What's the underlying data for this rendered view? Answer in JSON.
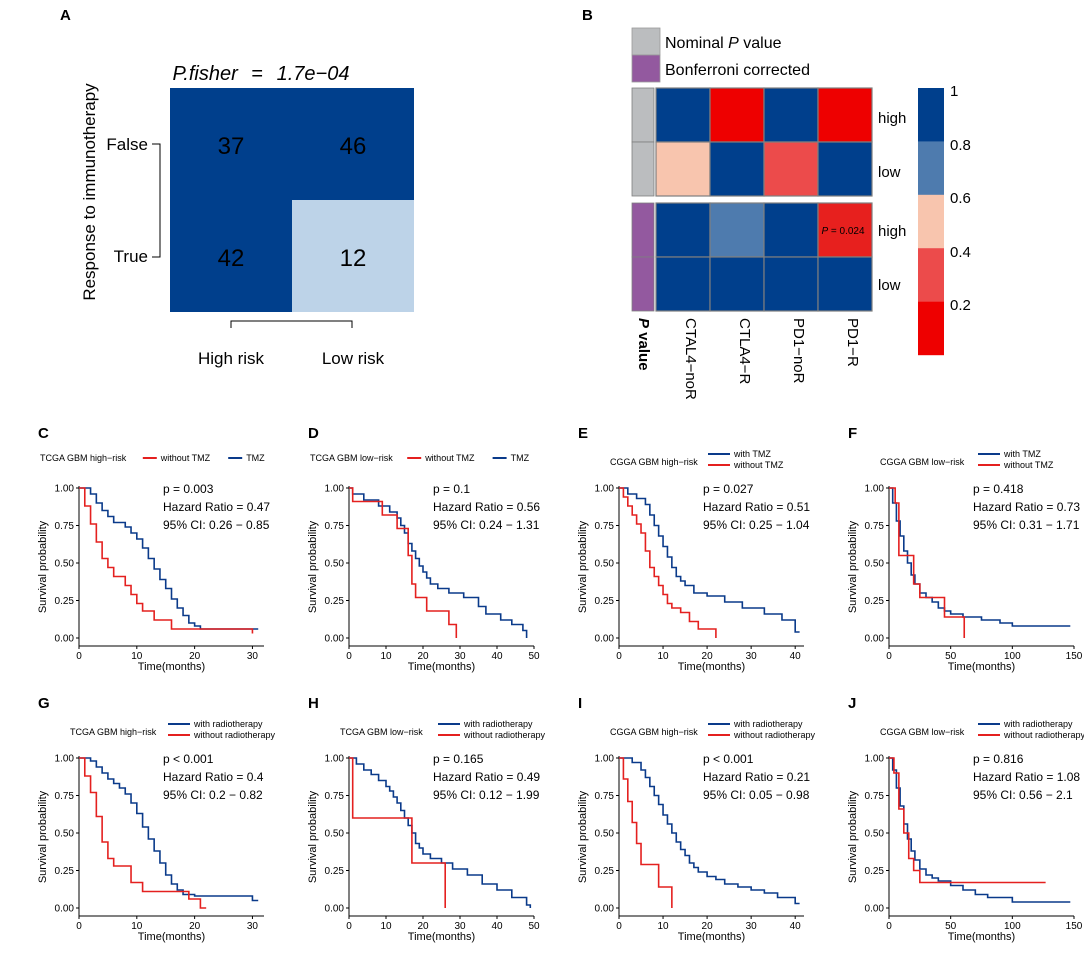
{
  "colors": {
    "dark_blue": "#003F8C",
    "light_blue": "#BDD3E8",
    "grey": "#BBBDBF",
    "purple": "#93599F",
    "red": "#E4201F",
    "km_blue": "#0A3A8A",
    "km_red": "#E4201F"
  },
  "panel_labels": [
    "A",
    "B",
    "C",
    "D",
    "E",
    "F",
    "G",
    "H",
    "I",
    "J"
  ],
  "panelA": {
    "title_prefix": "P.fisher",
    "title_eq": "=",
    "title_value": "1.7e−04",
    "ylabel": "Response to immunotherapy",
    "rows": [
      "False",
      "True"
    ],
    "cols": [
      "High risk",
      "Low risk"
    ],
    "cells": [
      [
        37,
        46
      ],
      [
        42,
        12
      ]
    ],
    "cell_shade": [
      [
        "dark",
        "dark"
      ],
      [
        "dark",
        "light"
      ]
    ]
  },
  "panelB": {
    "legend_items": [
      {
        "label": "Nominal ",
        "italic": "P",
        "suffix": " value",
        "color": "#BBBDBF"
      },
      {
        "label": "Bonferroni corrected",
        "italic": "",
        "suffix": "",
        "color": "#93599F"
      }
    ],
    "row_labels": [
      "high",
      "low",
      "high",
      "low"
    ],
    "row_groups": [
      "grey",
      "grey",
      "purple",
      "purple"
    ],
    "col_labels": [
      "CTAL4−noR",
      "CTLA4−R",
      "PD1−noR",
      "PD1−R"
    ],
    "pvalue_label_italic": "P",
    "pvalue_label_rest": " value",
    "values": [
      [
        1.0,
        0.02,
        1.0,
        0.02
      ],
      [
        0.42,
        1.0,
        0.28,
        1.0
      ],
      [
        1.0,
        0.72,
        1.0,
        0.02
      ],
      [
        1.0,
        1.0,
        1.0,
        1.0
      ]
    ],
    "cell_colors": [
      [
        "#003F8C",
        "#EE0000",
        "#003F8C",
        "#EE0000"
      ],
      [
        "#F8C5AE",
        "#003F8C",
        "#EC4B4B",
        "#003F8C"
      ],
      [
        "#003F8C",
        "#4E7BAE",
        "#003F8C",
        "#E7201E"
      ],
      [
        "#003F8C",
        "#003F8C",
        "#003F8C",
        "#003F8C"
      ]
    ],
    "annotation": {
      "row": 2,
      "col": 3,
      "italic": "P",
      "text": " = 0.024"
    },
    "colorbar_ticks": [
      "1",
      "0.8",
      "0.6",
      "0.4",
      "0.2"
    ],
    "colorbar_colors": [
      "#003F8C",
      "#4E7BAE",
      "#F8C5AE",
      "#EC4B4B",
      "#EE0000"
    ]
  },
  "chart_data": [
    {
      "type": "line",
      "label": "C",
      "title": "TCGA GBM high−risk",
      "legend": [
        {
          "name": "without TMZ",
          "color": "red"
        },
        {
          "name": "TMZ",
          "color": "blue"
        }
      ],
      "legend_layout": "inline",
      "stats": [
        "p = 0.003",
        "Hazard Ratio = 0.47",
        "95% CI: 0.26 − 0.85"
      ],
      "xlabel": "Time(months)",
      "ylabel": "Survival probability",
      "xlim": [
        0,
        32
      ],
      "ylim": [
        0,
        1
      ],
      "xticks": [
        0,
        10,
        20,
        30
      ],
      "yticks": [
        "0.00",
        "0.25",
        "0.50",
        "0.75",
        "1.00"
      ],
      "series": [
        {
          "name": "TMZ",
          "color": "blue",
          "x": [
            0,
            2,
            3,
            4,
            5,
            6,
            8,
            9,
            10,
            11,
            12,
            13,
            14,
            15,
            16,
            17,
            18,
            19,
            20,
            21,
            31
          ],
          "y": [
            1.0,
            0.96,
            0.9,
            0.85,
            0.81,
            0.77,
            0.74,
            0.7,
            0.66,
            0.6,
            0.53,
            0.46,
            0.39,
            0.33,
            0.26,
            0.2,
            0.15,
            0.1,
            0.08,
            0.06,
            0.06
          ]
        },
        {
          "name": "without TMZ",
          "color": "red",
          "x": [
            0,
            1,
            2,
            3,
            4,
            5,
            6,
            8,
            9,
            10,
            11,
            13,
            16,
            30
          ],
          "y": [
            1.0,
            0.88,
            0.76,
            0.64,
            0.53,
            0.47,
            0.41,
            0.35,
            0.29,
            0.23,
            0.18,
            0.12,
            0.06,
            0.03
          ]
        }
      ]
    },
    {
      "type": "line",
      "label": "D",
      "title": "TCGA GBM low−risk",
      "legend": [
        {
          "name": "without TMZ",
          "color": "red"
        },
        {
          "name": "TMZ",
          "color": "blue"
        }
      ],
      "legend_layout": "inline",
      "stats": [
        "p = 0.1",
        "Hazard Ratio = 0.56",
        "95% CI: 0.24 − 1.31"
      ],
      "xlabel": "Time(months)",
      "ylabel": "Survival probability",
      "xlim": [
        0,
        50
      ],
      "ylim": [
        0,
        1
      ],
      "xticks": [
        0,
        10,
        20,
        30,
        40,
        50
      ],
      "yticks": [
        "0.00",
        "0.25",
        "0.50",
        "0.75",
        "1.00"
      ],
      "series": [
        {
          "name": "TMZ",
          "color": "blue",
          "x": [
            0,
            1,
            4,
            8,
            11,
            13,
            14,
            15,
            16,
            17,
            18,
            19,
            20,
            21,
            22,
            24,
            27,
            31,
            35,
            37,
            41,
            44,
            47,
            48
          ],
          "y": [
            1.0,
            0.96,
            0.92,
            0.88,
            0.84,
            0.8,
            0.75,
            0.7,
            0.63,
            0.58,
            0.53,
            0.48,
            0.44,
            0.4,
            0.36,
            0.33,
            0.3,
            0.27,
            0.21,
            0.16,
            0.12,
            0.09,
            0.05,
            0.0
          ]
        },
        {
          "name": "without TMZ",
          "color": "red",
          "x": [
            0,
            1,
            9,
            13,
            16,
            17,
            18,
            21,
            27,
            29
          ],
          "y": [
            1.0,
            0.91,
            0.82,
            0.73,
            0.55,
            0.36,
            0.27,
            0.18,
            0.09,
            0.0
          ]
        }
      ]
    },
    {
      "type": "line",
      "label": "E",
      "title": "CGGA GBM high−risk",
      "legend": [
        {
          "name": "with TMZ",
          "color": "blue"
        },
        {
          "name": "without TMZ",
          "color": "red"
        }
      ],
      "legend_layout": "stacked",
      "stats": [
        "p = 0.027",
        "Hazard Ratio = 0.51",
        "95% CI: 0.25 − 1.04"
      ],
      "xlabel": "Time(months)",
      "ylabel": "Survival probability",
      "xlim": [
        0,
        42
      ],
      "ylim": [
        0,
        1
      ],
      "xticks": [
        0,
        10,
        20,
        30,
        40
      ],
      "yticks": [
        "0.00",
        "0.25",
        "0.50",
        "0.75",
        "1.00"
      ],
      "series": [
        {
          "name": "with TMZ",
          "color": "blue",
          "x": [
            0,
            2,
            4,
            6,
            7,
            8,
            9,
            10,
            11,
            12,
            13,
            14,
            15,
            17,
            20,
            24,
            28,
            33,
            37,
            40,
            41
          ],
          "y": [
            1.0,
            0.96,
            0.93,
            0.89,
            0.82,
            0.75,
            0.68,
            0.61,
            0.54,
            0.47,
            0.41,
            0.38,
            0.35,
            0.3,
            0.28,
            0.24,
            0.2,
            0.16,
            0.12,
            0.04,
            0.04
          ]
        },
        {
          "name": "without TMZ",
          "color": "red",
          "x": [
            0,
            1,
            2,
            3,
            4,
            5,
            6,
            7,
            8,
            9,
            10,
            11,
            12,
            14,
            16,
            18,
            20,
            22
          ],
          "y": [
            1.0,
            0.94,
            0.88,
            0.82,
            0.76,
            0.7,
            0.58,
            0.47,
            0.41,
            0.35,
            0.29,
            0.23,
            0.2,
            0.17,
            0.11,
            0.06,
            0.06,
            0.0
          ]
        }
      ]
    },
    {
      "type": "line",
      "label": "F",
      "title": "CGGA GBM low−risk",
      "legend": [
        {
          "name": "with TMZ",
          "color": "blue"
        },
        {
          "name": "without TMZ",
          "color": "red"
        }
      ],
      "legend_layout": "stacked",
      "stats": [
        "p = 0.418",
        "Hazard Ratio = 0.73",
        "95% CI: 0.31 − 1.71"
      ],
      "xlabel": "Time(months)",
      "ylabel": "Survival probability",
      "xlim": [
        0,
        150
      ],
      "ylim": [
        0,
        1
      ],
      "xticks": [
        0,
        50,
        100,
        150
      ],
      "yticks": [
        "0.00",
        "0.25",
        "0.50",
        "0.75",
        "1.00"
      ],
      "series": [
        {
          "name": "with TMZ",
          "color": "blue",
          "x": [
            0,
            3,
            6,
            9,
            12,
            15,
            18,
            21,
            25,
            30,
            35,
            40,
            45,
            50,
            60,
            75,
            90,
            100,
            147
          ],
          "y": [
            1.0,
            0.9,
            0.78,
            0.68,
            0.58,
            0.5,
            0.42,
            0.36,
            0.3,
            0.27,
            0.24,
            0.2,
            0.18,
            0.16,
            0.14,
            0.12,
            0.1,
            0.08,
            0.08
          ]
        },
        {
          "name": "without TMZ",
          "color": "red",
          "x": [
            0,
            5,
            8,
            15,
            20,
            25,
            30,
            45,
            60,
            61
          ],
          "y": [
            1.0,
            0.9,
            0.55,
            0.55,
            0.36,
            0.27,
            0.27,
            0.14,
            0.14,
            0.0
          ]
        }
      ]
    },
    {
      "type": "line",
      "label": "G",
      "title": "TCGA GBM high−risk",
      "legend": [
        {
          "name": "with radiotherapy",
          "color": "blue"
        },
        {
          "name": "without radiotherapy",
          "color": "red"
        }
      ],
      "legend_layout": "stacked",
      "stats": [
        "p < 0.001",
        "Hazard Ratio = 0.4",
        "95% CI: 0.2 − 0.82"
      ],
      "xlabel": "Time(months)",
      "ylabel": "Survival probability",
      "xlim": [
        0,
        32
      ],
      "ylim": [
        0,
        1
      ],
      "xticks": [
        0,
        10,
        20,
        30
      ],
      "yticks": [
        "0.00",
        "0.25",
        "0.50",
        "0.75",
        "1.00"
      ],
      "series": [
        {
          "name": "with radiotherapy",
          "color": "blue",
          "x": [
            0,
            2,
            3,
            4,
            5,
            6,
            7,
            8,
            9,
            10,
            11,
            12,
            13,
            14,
            15,
            16,
            17,
            18,
            20,
            22,
            30,
            31
          ],
          "y": [
            1.0,
            0.98,
            0.94,
            0.9,
            0.86,
            0.83,
            0.8,
            0.76,
            0.7,
            0.63,
            0.54,
            0.46,
            0.38,
            0.3,
            0.22,
            0.16,
            0.12,
            0.09,
            0.08,
            0.08,
            0.05,
            0.05
          ]
        },
        {
          "name": "without radiotherapy",
          "color": "red",
          "x": [
            0,
            1,
            2,
            3,
            4,
            5,
            6,
            8,
            9,
            11,
            16,
            19,
            21,
            22
          ],
          "y": [
            1.0,
            0.88,
            0.77,
            0.61,
            0.44,
            0.33,
            0.28,
            0.28,
            0.17,
            0.11,
            0.11,
            0.06,
            0.0,
            0.0
          ]
        }
      ]
    },
    {
      "type": "line",
      "label": "H",
      "title": "TCGA GBM low−risk",
      "legend": [
        {
          "name": "with radiotherapy",
          "color": "blue"
        },
        {
          "name": "without radiotherapy",
          "color": "red"
        }
      ],
      "legend_layout": "stacked",
      "stats": [
        "p = 0.165",
        "Hazard Ratio = 0.49",
        "95% CI: 0.12 − 1.99"
      ],
      "xlabel": "Time(months)",
      "ylabel": "Survival probability",
      "xlim": [
        0,
        50
      ],
      "ylim": [
        0,
        1
      ],
      "xticks": [
        0,
        10,
        20,
        30,
        40,
        50
      ],
      "yticks": [
        "0.00",
        "0.25",
        "0.50",
        "0.75",
        "1.00"
      ],
      "series": [
        {
          "name": "with radiotherapy",
          "color": "blue",
          "x": [
            0,
            2,
            4,
            6,
            8,
            10,
            11,
            12,
            13,
            14,
            15,
            16,
            17,
            18,
            19,
            20,
            22,
            25,
            28,
            32,
            36,
            40,
            44,
            48,
            49
          ],
          "y": [
            1.0,
            0.96,
            0.92,
            0.89,
            0.85,
            0.81,
            0.78,
            0.74,
            0.7,
            0.65,
            0.6,
            0.55,
            0.5,
            0.43,
            0.4,
            0.36,
            0.33,
            0.3,
            0.26,
            0.22,
            0.16,
            0.12,
            0.07,
            0.02,
            0.0
          ]
        },
        {
          "name": "without radiotherapy",
          "color": "red",
          "x": [
            0,
            1,
            17,
            26
          ],
          "y": [
            1.0,
            0.6,
            0.3,
            0.0
          ]
        }
      ]
    },
    {
      "type": "line",
      "label": "I",
      "title": "CGGA GBM high−risk",
      "legend": [
        {
          "name": "with radiotherapy",
          "color": "blue"
        },
        {
          "name": "without radiotherapy",
          "color": "red"
        }
      ],
      "legend_layout": "stacked",
      "stats": [
        "p < 0.001",
        "Hazard Ratio = 0.21",
        "95% CI: 0.05 − 0.98"
      ],
      "xlabel": "Time(months)",
      "ylabel": "Survival probability",
      "xlim": [
        0,
        42
      ],
      "ylim": [
        0,
        1
      ],
      "xticks": [
        0,
        10,
        20,
        30,
        40
      ],
      "yticks": [
        "0.00",
        "0.25",
        "0.50",
        "0.75",
        "1.00"
      ],
      "series": [
        {
          "name": "with radiotherapy",
          "color": "blue",
          "x": [
            0,
            3,
            5,
            6,
            7,
            8,
            9,
            10,
            11,
            12,
            13,
            14,
            15,
            16,
            17,
            18,
            20,
            22,
            24,
            27,
            30,
            33,
            36,
            40,
            41
          ],
          "y": [
            1.0,
            0.97,
            0.92,
            0.87,
            0.81,
            0.75,
            0.69,
            0.62,
            0.56,
            0.5,
            0.44,
            0.39,
            0.35,
            0.3,
            0.27,
            0.24,
            0.21,
            0.19,
            0.16,
            0.14,
            0.12,
            0.1,
            0.07,
            0.03,
            0.03
          ]
        },
        {
          "name": "without radiotherapy",
          "color": "red",
          "x": [
            0,
            1,
            2,
            3,
            4,
            5,
            9,
            12
          ],
          "y": [
            1.0,
            0.86,
            0.71,
            0.57,
            0.43,
            0.29,
            0.14,
            0.0
          ]
        }
      ]
    },
    {
      "type": "line",
      "label": "J",
      "title": "CGGA GBM low−risk",
      "legend": [
        {
          "name": "with radiotherapy",
          "color": "blue"
        },
        {
          "name": "without radiotherapy",
          "color": "red"
        }
      ],
      "legend_layout": "stacked",
      "stats": [
        "p = 0.816",
        "Hazard Ratio = 1.08",
        "95% CI: 0.56 − 2.1"
      ],
      "xlabel": "Time(months)",
      "ylabel": "Survival probability",
      "xlim": [
        0,
        150
      ],
      "ylim": [
        0,
        1
      ],
      "xticks": [
        0,
        50,
        100,
        150
      ],
      "yticks": [
        "0.00",
        "0.25",
        "0.50",
        "0.75",
        "1.00"
      ],
      "series": [
        {
          "name": "with radiotherapy",
          "color": "blue",
          "x": [
            0,
            3,
            6,
            9,
            12,
            15,
            18,
            21,
            25,
            30,
            35,
            40,
            50,
            60,
            70,
            80,
            100,
            147
          ],
          "y": [
            1.0,
            0.92,
            0.8,
            0.68,
            0.56,
            0.46,
            0.38,
            0.32,
            0.26,
            0.22,
            0.2,
            0.18,
            0.15,
            0.12,
            0.09,
            0.07,
            0.04,
            0.04
          ]
        },
        {
          "name": "without radiotherapy",
          "color": "red",
          "x": [
            0,
            4,
            8,
            12,
            16,
            20,
            25,
            30,
            127
          ],
          "y": [
            1.0,
            0.9,
            0.66,
            0.5,
            0.33,
            0.25,
            0.17,
            0.17,
            0.17
          ]
        }
      ]
    }
  ]
}
